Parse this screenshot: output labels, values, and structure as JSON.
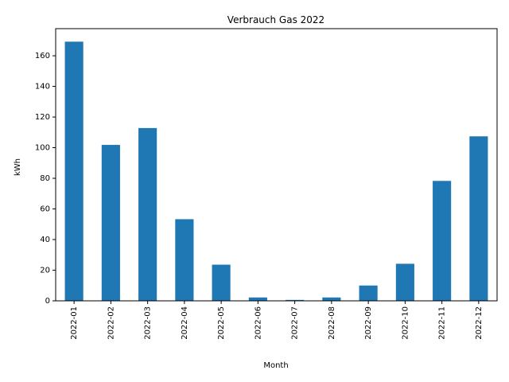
{
  "chart_data": {
    "type": "bar",
    "title": "Verbrauch Gas 2022",
    "xlabel": "Month",
    "ylabel": "kWh",
    "categories": [
      "2022-01",
      "2022-02",
      "2022-03",
      "2022-04",
      "2022-05",
      "2022-06",
      "2022-07",
      "2022-08",
      "2022-09",
      "2022-10",
      "2022-11",
      "2022-12"
    ],
    "values": [
      169.2,
      101.8,
      112.8,
      53.3,
      23.6,
      2.2,
      0.6,
      2.2,
      10.0,
      24.2,
      78.3,
      107.4
    ],
    "ylim": [
      0,
      177.7
    ],
    "yticks": [
      0,
      20,
      40,
      60,
      80,
      100,
      120,
      140,
      160
    ],
    "bar_color": "#1f77b4",
    "grid": false,
    "legend": "none"
  }
}
